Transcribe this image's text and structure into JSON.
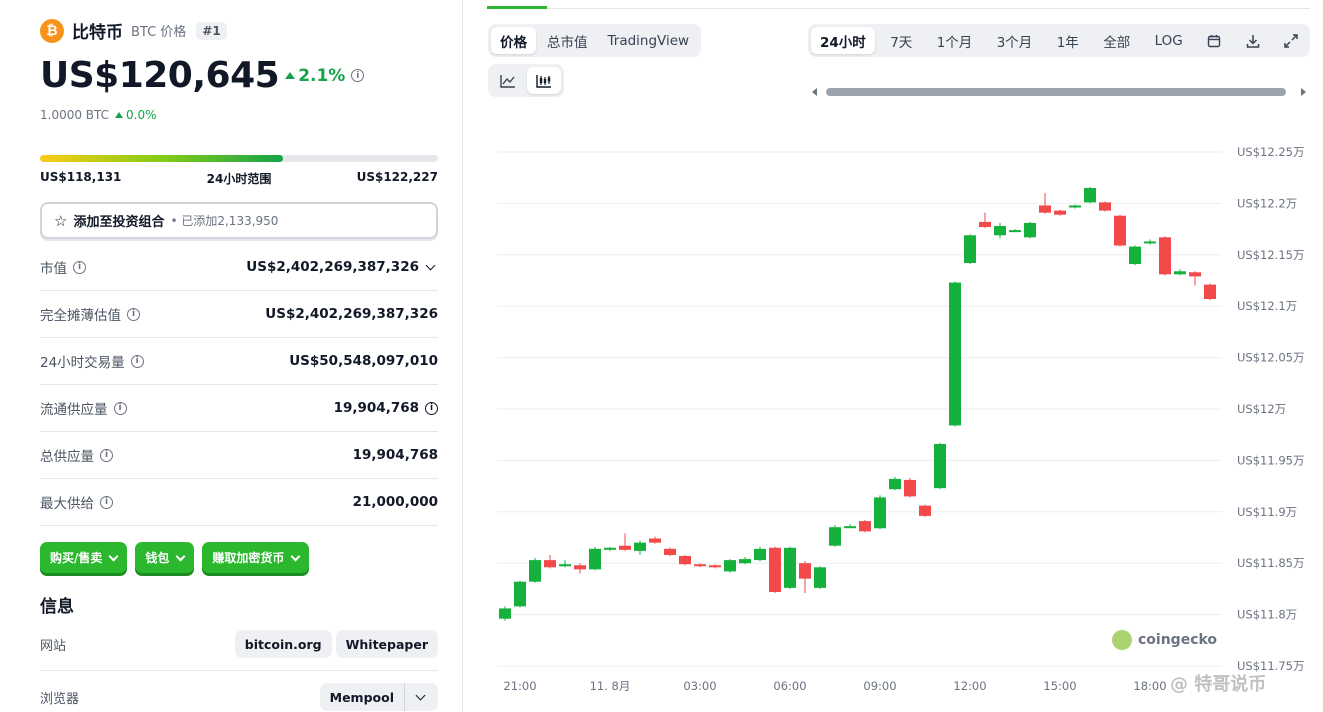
{
  "coin": {
    "name": "比特币",
    "symbol_label": "BTC 价格",
    "rank": "#1",
    "logo_glyph": "₿",
    "price": "US$120,645",
    "change_24h": "2.1%",
    "btc_value": "1.0000 BTC",
    "btc_change": "0.0%"
  },
  "range": {
    "low": "US$118,131",
    "label": "24小时范围",
    "high": "US$122,227",
    "fill_fraction": 0.61
  },
  "portfolio": {
    "label": "添加至投资组合",
    "added": "• 已添加2,133,950"
  },
  "stats": [
    {
      "label": "市值",
      "value": "US$2,402,269,387,326",
      "icon": "chevron-down-icon"
    },
    {
      "label": "完全摊薄估值",
      "value": "US$2,402,269,387,326"
    },
    {
      "label": "24小时交易量",
      "value": "US$50,548,097,010"
    },
    {
      "label": "流通供应量",
      "value": "19,904,768",
      "icon": "info-icon"
    },
    {
      "label": "总供应量",
      "value": "19,904,768"
    },
    {
      "label": "最大供给",
      "value": "21,000,000"
    }
  ],
  "actions": {
    "buy_sell": "购买/售卖",
    "wallet": "钱包",
    "earn": "赚取加密货币"
  },
  "info": {
    "title": "信息",
    "website_label": "网站",
    "website_links": [
      "bitcoin.org",
      "Whitepaper"
    ],
    "explorer_label": "浏览器",
    "explorer_value": "Mempool"
  },
  "chart_tabs": {
    "type_tabs": [
      "价格",
      "总市值",
      "TradingView"
    ],
    "active_type": "价格",
    "time_tabs": [
      "24小时",
      "7天",
      "1个月",
      "3个月",
      "1年",
      "全部",
      "LOG"
    ],
    "active_time": "24小时"
  },
  "brand": {
    "chart_logo": "coingecko",
    "watermark": "@ 特哥说币"
  },
  "colors": {
    "up": "#16b03c",
    "down": "#f24a4a",
    "accent": "#2bb72e"
  },
  "chart_data": {
    "type": "candlestick",
    "y_unit": "US$ 万",
    "ylim": [
      11.75,
      12.25
    ],
    "y_ticks": [
      12.25,
      12.2,
      12.15,
      12.1,
      12.05,
      12.0,
      11.95,
      11.9,
      11.85,
      11.8,
      11.75
    ],
    "y_tick_labels": [
      "US$12.25万",
      "US$12.2万",
      "US$12.15万",
      "US$12.1万",
      "US$12.05万",
      "US$12万",
      "US$11.95万",
      "US$11.9万",
      "US$11.85万",
      "US$11.8万",
      "US$11.75万"
    ],
    "x_tick_labels": [
      "21:00",
      "11. 8月",
      "03:00",
      "06:00",
      "09:00",
      "12:00",
      "15:00",
      "18:00"
    ],
    "x_tick_hours": [
      1,
      7,
      13,
      19,
      25,
      31,
      37,
      43
    ],
    "grid": true,
    "candles": [
      {
        "h": 0.0,
        "o": 11.796,
        "c": 11.806,
        "hi": 11.808,
        "lo": 11.794
      },
      {
        "h": 1.0,
        "o": 11.808,
        "c": 11.832,
        "hi": 11.833,
        "lo": 11.807
      },
      {
        "h": 2.0,
        "o": 11.832,
        "c": 11.853,
        "hi": 11.855,
        "lo": 11.831
      },
      {
        "h": 3.0,
        "o": 11.853,
        "c": 11.846,
        "hi": 11.858,
        "lo": 11.845
      },
      {
        "h": 4.0,
        "o": 11.847,
        "c": 11.849,
        "hi": 11.853,
        "lo": 11.846
      },
      {
        "h": 5.0,
        "o": 11.848,
        "c": 11.844,
        "hi": 11.85,
        "lo": 11.84
      },
      {
        "h": 6.0,
        "o": 11.844,
        "c": 11.864,
        "hi": 11.866,
        "lo": 11.843
      },
      {
        "h": 7.0,
        "o": 11.864,
        "c": 11.865,
        "hi": 11.866,
        "lo": 11.862
      },
      {
        "h": 8.0,
        "o": 11.867,
        "c": 11.863,
        "hi": 11.879,
        "lo": 11.862
      },
      {
        "h": 9.0,
        "o": 11.862,
        "c": 11.87,
        "hi": 11.872,
        "lo": 11.858
      },
      {
        "h": 10.0,
        "o": 11.874,
        "c": 11.87,
        "hi": 11.876,
        "lo": 11.869
      },
      {
        "h": 11.0,
        "o": 11.864,
        "c": 11.858,
        "hi": 11.865,
        "lo": 11.857
      },
      {
        "h": 12.0,
        "o": 11.857,
        "c": 11.849,
        "hi": 11.858,
        "lo": 11.848
      },
      {
        "h": 13.0,
        "o": 11.849,
        "c": 11.848,
        "hi": 11.85,
        "lo": 11.846
      },
      {
        "h": 14.0,
        "o": 11.848,
        "c": 11.846,
        "hi": 11.849,
        "lo": 11.845
      },
      {
        "h": 15.0,
        "o": 11.842,
        "c": 11.853,
        "hi": 11.854,
        "lo": 11.841
      },
      {
        "h": 16.0,
        "o": 11.85,
        "c": 11.854,
        "hi": 11.856,
        "lo": 11.849
      },
      {
        "h": 17.0,
        "o": 11.853,
        "c": 11.864,
        "hi": 11.866,
        "lo": 11.852
      },
      {
        "h": 18.0,
        "o": 11.865,
        "c": 11.822,
        "hi": 11.866,
        "lo": 11.821
      },
      {
        "h": 19.0,
        "o": 11.826,
        "c": 11.865,
        "hi": 11.866,
        "lo": 11.825
      },
      {
        "h": 20.0,
        "o": 11.85,
        "c": 11.835,
        "hi": 11.852,
        "lo": 11.821
      },
      {
        "h": 21.0,
        "o": 11.826,
        "c": 11.846,
        "hi": 11.847,
        "lo": 11.825
      },
      {
        "h": 22.0,
        "o": 11.867,
        "c": 11.885,
        "hi": 11.887,
        "lo": 11.866
      },
      {
        "h": 23.0,
        "o": 11.885,
        "c": 11.886,
        "hi": 11.888,
        "lo": 11.884
      },
      {
        "h": 24.0,
        "o": 11.891,
        "c": 11.881,
        "hi": 11.892,
        "lo": 11.88
      },
      {
        "h": 25.0,
        "o": 11.884,
        "c": 11.914,
        "hi": 11.916,
        "lo": 11.883
      },
      {
        "h": 26.0,
        "o": 11.922,
        "c": 11.932,
        "hi": 11.934,
        "lo": 11.921
      },
      {
        "h": 27.0,
        "o": 11.931,
        "c": 11.915,
        "hi": 11.933,
        "lo": 11.914
      },
      {
        "h": 28.0,
        "o": 11.906,
        "c": 11.896,
        "hi": 11.907,
        "lo": 11.895
      },
      {
        "h": 29.0,
        "o": 11.923,
        "c": 11.966,
        "hi": 11.967,
        "lo": 11.922
      },
      {
        "h": 30.0,
        "o": 11.984,
        "c": 12.123,
        "hi": 12.124,
        "lo": 11.983
      },
      {
        "h": 31.0,
        "o": 12.142,
        "c": 12.169,
        "hi": 12.17,
        "lo": 12.141
      },
      {
        "h": 32.0,
        "o": 12.182,
        "c": 12.177,
        "hi": 12.191,
        "lo": 12.176
      },
      {
        "h": 33.0,
        "o": 12.169,
        "c": 12.178,
        "hi": 12.181,
        "lo": 12.166
      },
      {
        "h": 34.0,
        "o": 12.173,
        "c": 12.174,
        "hi": 12.175,
        "lo": 12.172
      },
      {
        "h": 35.0,
        "o": 12.167,
        "c": 12.181,
        "hi": 12.182,
        "lo": 12.166
      },
      {
        "h": 36.0,
        "o": 12.198,
        "c": 12.191,
        "hi": 12.21,
        "lo": 12.19
      },
      {
        "h": 37.0,
        "o": 12.193,
        "c": 12.189,
        "hi": 12.194,
        "lo": 12.188
      },
      {
        "h": 38.0,
        "o": 12.196,
        "c": 12.198,
        "hi": 12.199,
        "lo": 12.195
      },
      {
        "h": 39.0,
        "o": 12.201,
        "c": 12.215,
        "hi": 12.216,
        "lo": 12.2
      },
      {
        "h": 40.0,
        "o": 12.201,
        "c": 12.193,
        "hi": 12.202,
        "lo": 12.192
      },
      {
        "h": 41.0,
        "o": 12.188,
        "c": 12.159,
        "hi": 12.189,
        "lo": 12.158
      },
      {
        "h": 42.0,
        "o": 12.141,
        "c": 12.158,
        "hi": 12.159,
        "lo": 12.14
      },
      {
        "h": 43.0,
        "o": 12.162,
        "c": 12.163,
        "hi": 12.165,
        "lo": 12.16
      },
      {
        "h": 44.0,
        "o": 12.167,
        "c": 12.131,
        "hi": 12.168,
        "lo": 12.13
      },
      {
        "h": 45.0,
        "o": 12.131,
        "c": 12.134,
        "hi": 12.136,
        "lo": 12.13
      },
      {
        "h": 46.0,
        "o": 12.133,
        "c": 12.129,
        "hi": 12.134,
        "lo": 12.12
      },
      {
        "h": 47.0,
        "o": 12.121,
        "c": 12.107,
        "hi": 12.122,
        "lo": 12.106
      }
    ]
  }
}
